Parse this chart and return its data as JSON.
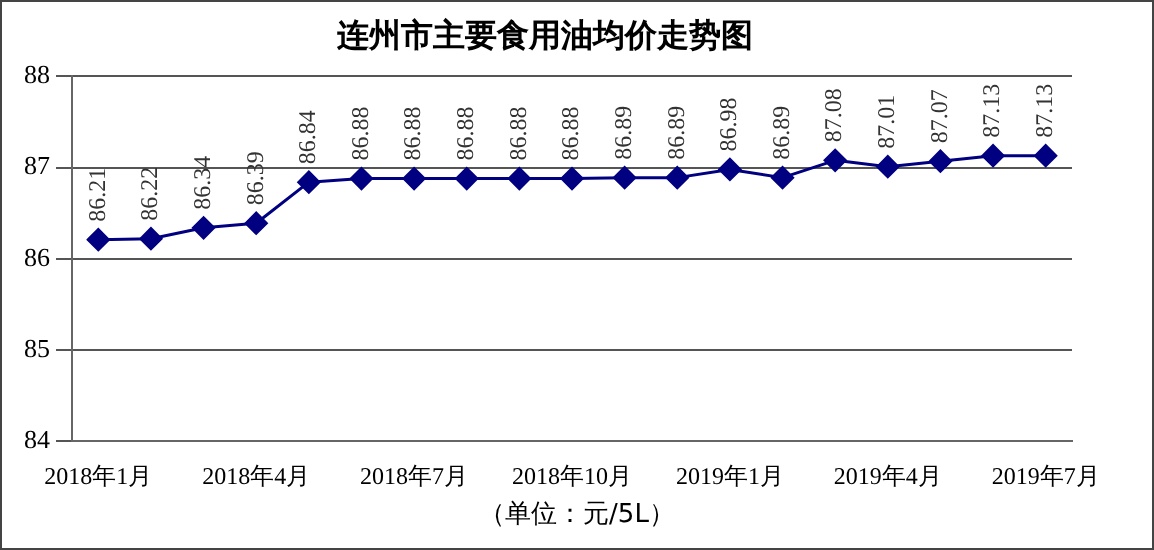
{
  "chart_data": {
    "type": "line",
    "title": "连州市主要食用油均价走势图",
    "categories": [
      "2018年1月",
      null,
      null,
      "2018年4月",
      null,
      null,
      "2018年7月",
      null,
      null,
      "2018年10月",
      null,
      null,
      "2019年1月",
      null,
      null,
      "2019年4月",
      null,
      null,
      "2019年7月"
    ],
    "series": [
      {
        "color": "#000080",
        "values": [
          86.21,
          86.22,
          86.34,
          86.39,
          86.84,
          86.88,
          86.88,
          86.88,
          86.88,
          86.88,
          86.89,
          86.89,
          86.98,
          86.89,
          87.08,
          87.01,
          87.07,
          87.13,
          87.13
        ]
      }
    ],
    "ylim": [
      84,
      88
    ],
    "yticks": [
      84,
      85,
      86,
      87,
      88
    ],
    "grid": "y",
    "legend": false,
    "marker": "diamond",
    "line_style": "solid",
    "data_labels": true,
    "annotations": [
      "（单位：元/5L）"
    ]
  }
}
